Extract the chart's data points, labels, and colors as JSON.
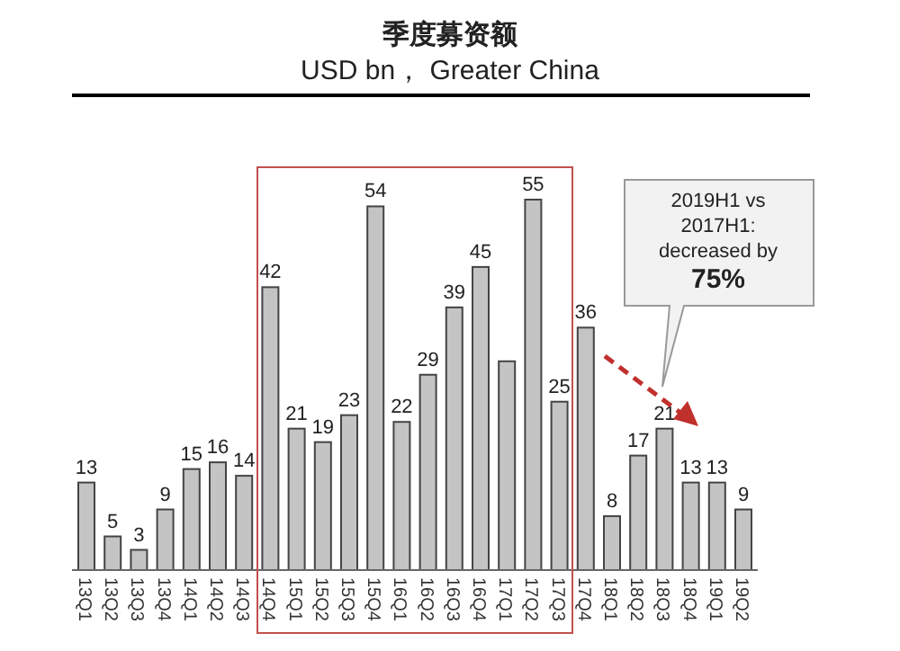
{
  "chart_data": {
    "type": "bar",
    "title": "季度募资额",
    "subtitle": "USD bn， Greater China",
    "categories": [
      "13Q1",
      "13Q2",
      "13Q3",
      "13Q4",
      "14Q1",
      "14Q2",
      "14Q3",
      "14Q4",
      "15Q1",
      "15Q2",
      "15Q3",
      "15Q4",
      "16Q1",
      "16Q2",
      "16Q3",
      "16Q4",
      "17Q1",
      "17Q2",
      "17Q3",
      "17Q4",
      "18Q1",
      "18Q2",
      "18Q3",
      "18Q4",
      "19Q1",
      "19Q2"
    ],
    "values": [
      13,
      5,
      3,
      9,
      15,
      16,
      14,
      42,
      21,
      19,
      23,
      54,
      22,
      29,
      39,
      45,
      31,
      55,
      25,
      36,
      8,
      17,
      21,
      13,
      13,
      9
    ],
    "value_labels": [
      "13",
      "5",
      "3",
      "9",
      "15",
      "16",
      "14",
      "42",
      "21",
      "19",
      "23",
      "54",
      "22",
      "29",
      "39",
      "45",
      null,
      "55",
      "25",
      "36",
      "8",
      "17",
      "21",
      "13",
      "13",
      "9"
    ],
    "color": "#c4c4c4",
    "annotations": [
      "2019H1 vs\n2017H1:\ndecreased by\n75%"
    ]
  }
}
